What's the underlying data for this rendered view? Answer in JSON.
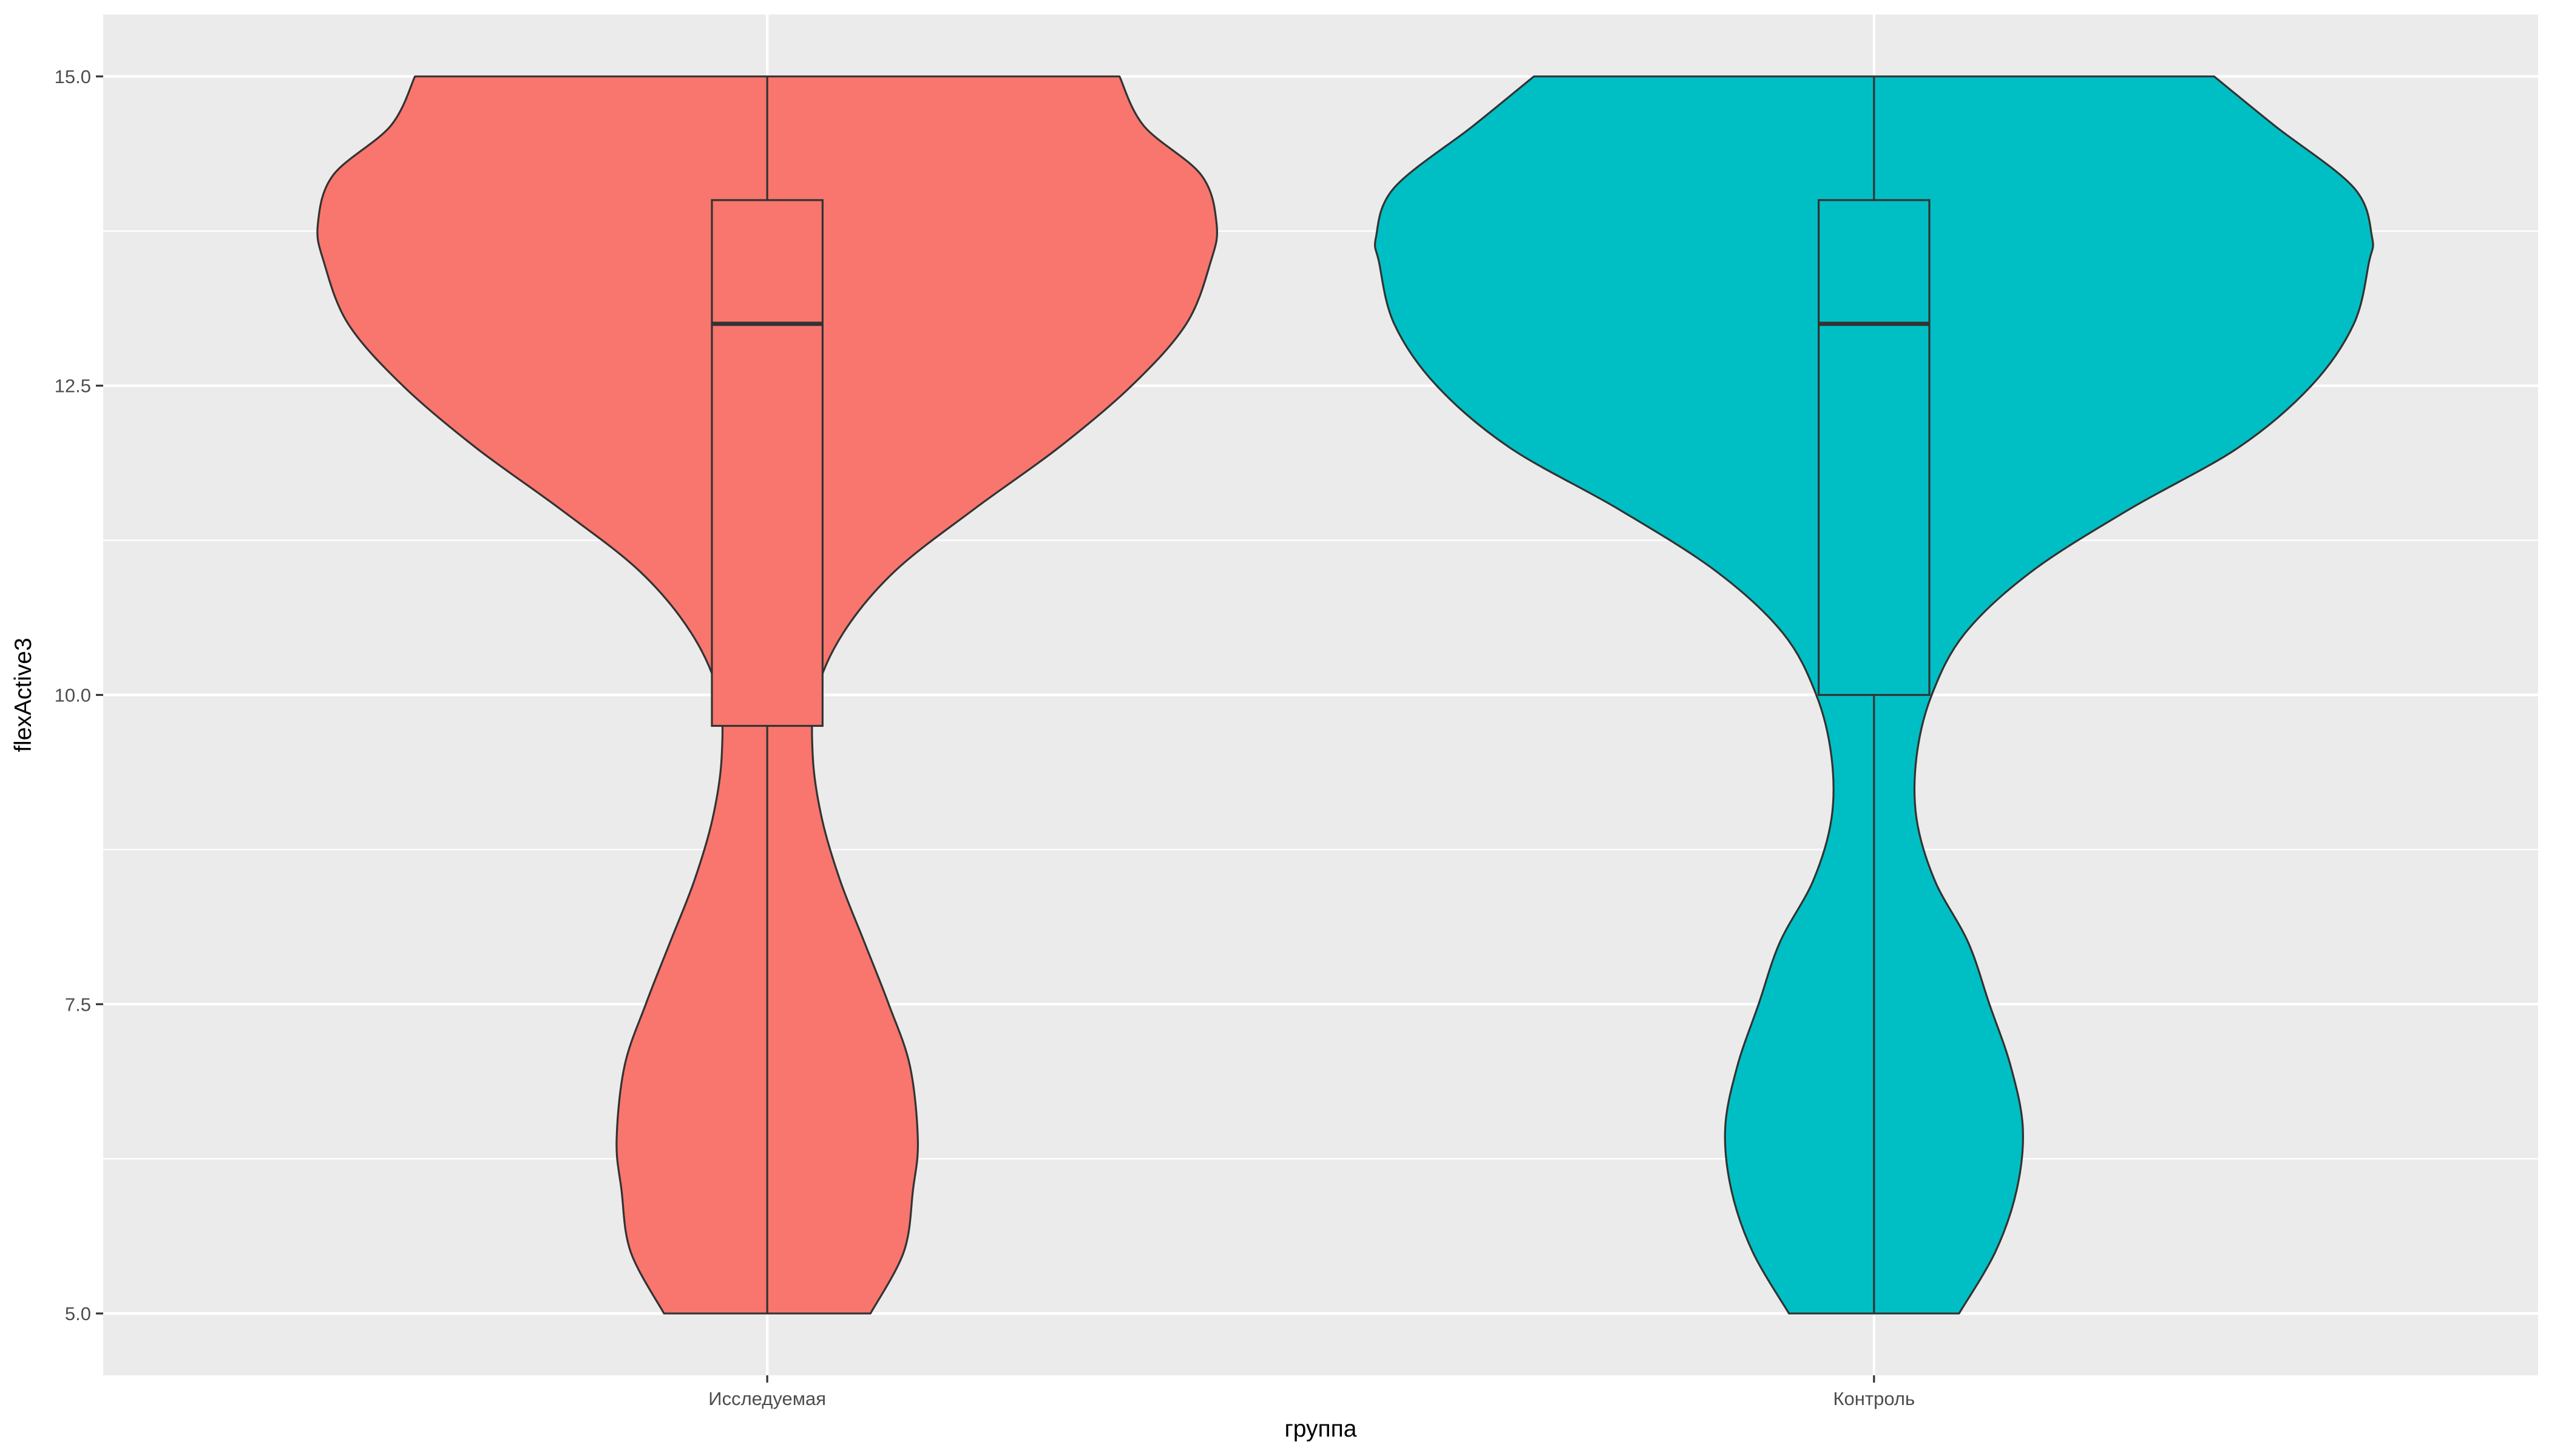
{
  "chart_data": {
    "type": "violin",
    "title": "",
    "xlabel": "группа",
    "ylabel": "flexActive3",
    "ylim": [
      4.5,
      15.5
    ],
    "yticks": [
      5.0,
      7.5,
      10.0,
      12.5,
      15.0
    ],
    "ytick_labels": [
      "5.0",
      "7.5",
      "10.0",
      "12.5",
      "15.0"
    ],
    "categories": [
      "Исследуемая",
      "Контроль"
    ],
    "grid": true,
    "legend": "none",
    "colors": {
      "panel_bg": "#ebebeb",
      "grid_major": "#ffffff",
      "outline": "#333333",
      "series": [
        "#F8766D",
        "#00BFC4"
      ]
    },
    "series": [
      {
        "category": "Исследуемая",
        "color": "#F8766D",
        "box": {
          "min": 5,
          "q1": 9.75,
          "median": 13,
          "q3": 14,
          "max": 15
        },
        "density": [
          [
            5.0,
            0.17
          ],
          [
            5.5,
            0.225
          ],
          [
            6.0,
            0.24
          ],
          [
            6.4,
            0.248
          ],
          [
            7.0,
            0.235
          ],
          [
            7.5,
            0.2
          ],
          [
            8.0,
            0.16
          ],
          [
            8.5,
            0.12
          ],
          [
            9.0,
            0.09
          ],
          [
            9.5,
            0.075
          ],
          [
            10.0,
            0.08
          ],
          [
            10.5,
            0.125
          ],
          [
            11.0,
            0.21
          ],
          [
            11.5,
            0.34
          ],
          [
            12.0,
            0.48
          ],
          [
            12.5,
            0.6
          ],
          [
            13.0,
            0.69
          ],
          [
            13.5,
            0.73
          ],
          [
            13.8,
            0.74
          ],
          [
            14.2,
            0.715
          ],
          [
            14.6,
            0.62
          ],
          [
            15.0,
            0.58
          ]
        ]
      },
      {
        "category": "Контроль",
        "color": "#00BFC4",
        "box": {
          "min": 5,
          "q1": 10,
          "median": 13,
          "q3": 14,
          "max": 15
        },
        "density": [
          [
            5.0,
            0.14
          ],
          [
            5.5,
            0.2
          ],
          [
            6.0,
            0.235
          ],
          [
            6.5,
            0.245
          ],
          [
            7.0,
            0.225
          ],
          [
            7.5,
            0.19
          ],
          [
            8.0,
            0.155
          ],
          [
            8.5,
            0.1
          ],
          [
            9.0,
            0.07
          ],
          [
            9.5,
            0.07
          ],
          [
            10.0,
            0.095
          ],
          [
            10.5,
            0.15
          ],
          [
            11.0,
            0.26
          ],
          [
            11.5,
            0.42
          ],
          [
            12.0,
            0.6
          ],
          [
            12.5,
            0.72
          ],
          [
            13.0,
            0.79
          ],
          [
            13.5,
            0.815
          ],
          [
            13.7,
            0.82
          ],
          [
            14.1,
            0.79
          ],
          [
            14.6,
            0.66
          ],
          [
            15.0,
            0.56
          ]
        ]
      }
    ]
  }
}
